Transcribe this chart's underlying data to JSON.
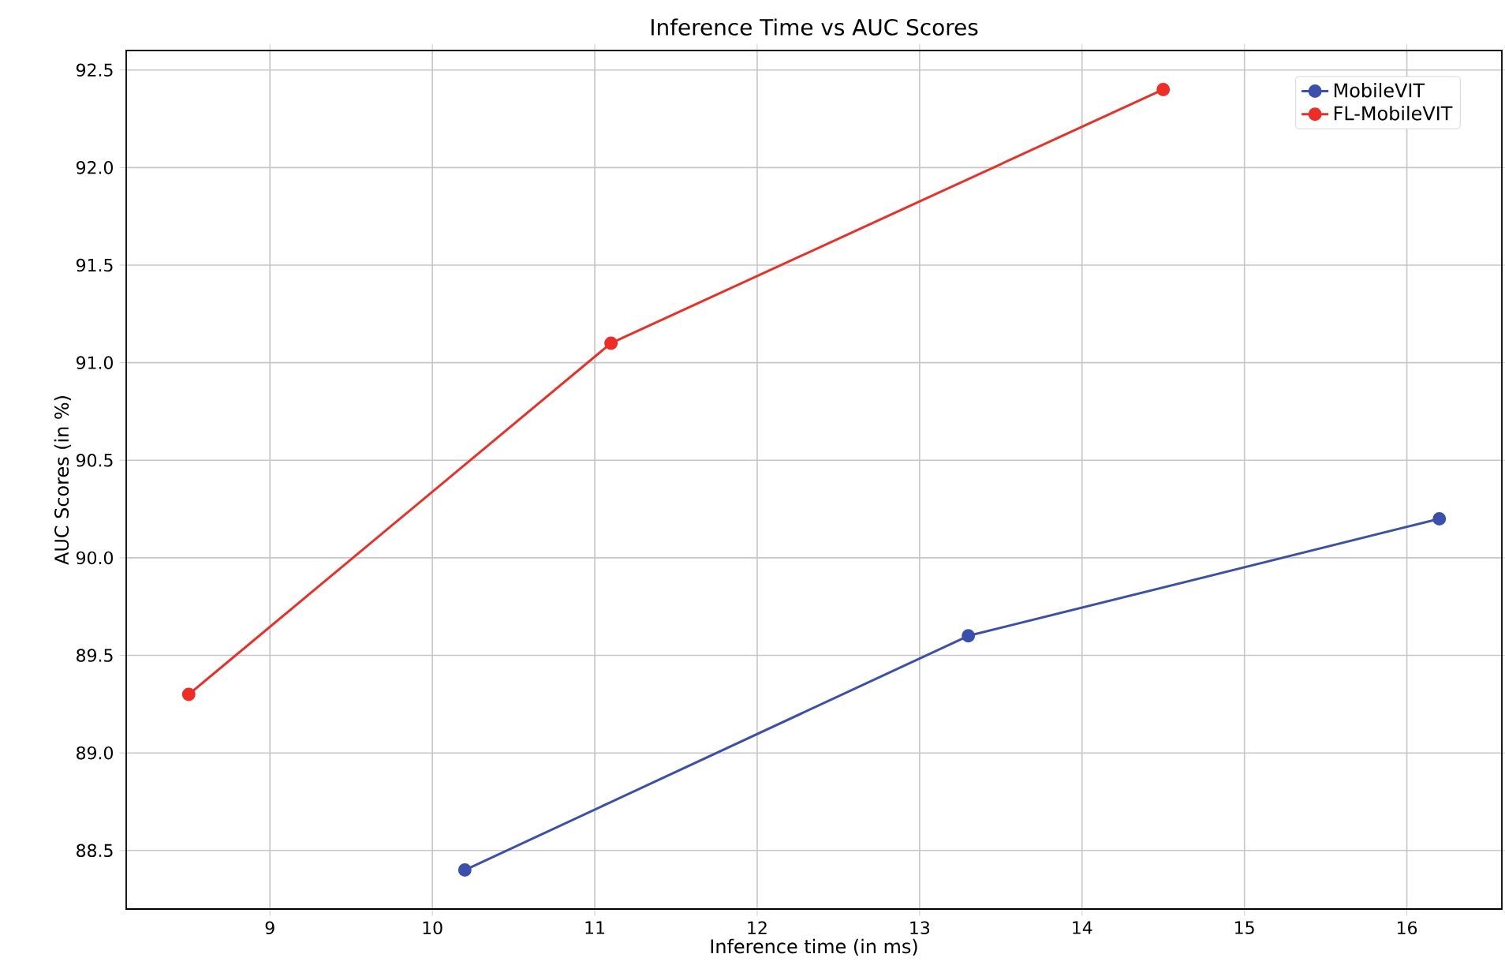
{
  "chart_data": {
    "type": "line",
    "title": "Inference Time vs AUC Scores",
    "xlabel": "Inference time (in ms)",
    "ylabel": "AUC Scores (in %)",
    "xlim": [
      8.115,
      16.585
    ],
    "ylim": [
      88.2,
      92.6
    ],
    "xticks": [
      9,
      10,
      11,
      12,
      13,
      14,
      15,
      16
    ],
    "yticks": [
      {
        "value": 88.5,
        "label": "88.5"
      },
      {
        "value": 89,
        "label": "89.0"
      },
      {
        "value": 89.5,
        "label": "89.5"
      },
      {
        "value": 90,
        "label": "90.0"
      },
      {
        "value": 90.5,
        "label": "90.5"
      },
      {
        "value": 91,
        "label": "91.0"
      },
      {
        "value": 91.5,
        "label": "91.5"
      },
      {
        "value": 92,
        "label": "92.0"
      },
      {
        "value": 92.5,
        "label": "92.5"
      }
    ],
    "grid": true,
    "legend": "top right",
    "marker": "circle",
    "line_style": "solid",
    "series": [
      {
        "name": "MobileVIT",
        "color": "#3a4fae",
        "x": [
          10.2,
          13.3,
          16.2
        ],
        "values": [
          88.4,
          89.6,
          90.2
        ]
      },
      {
        "name": "FL-MobileVIT",
        "color": "#f02c24",
        "x": [
          8.5,
          11.1,
          14.5
        ],
        "values": [
          89.3,
          91.1,
          92.4
        ]
      }
    ]
  }
}
